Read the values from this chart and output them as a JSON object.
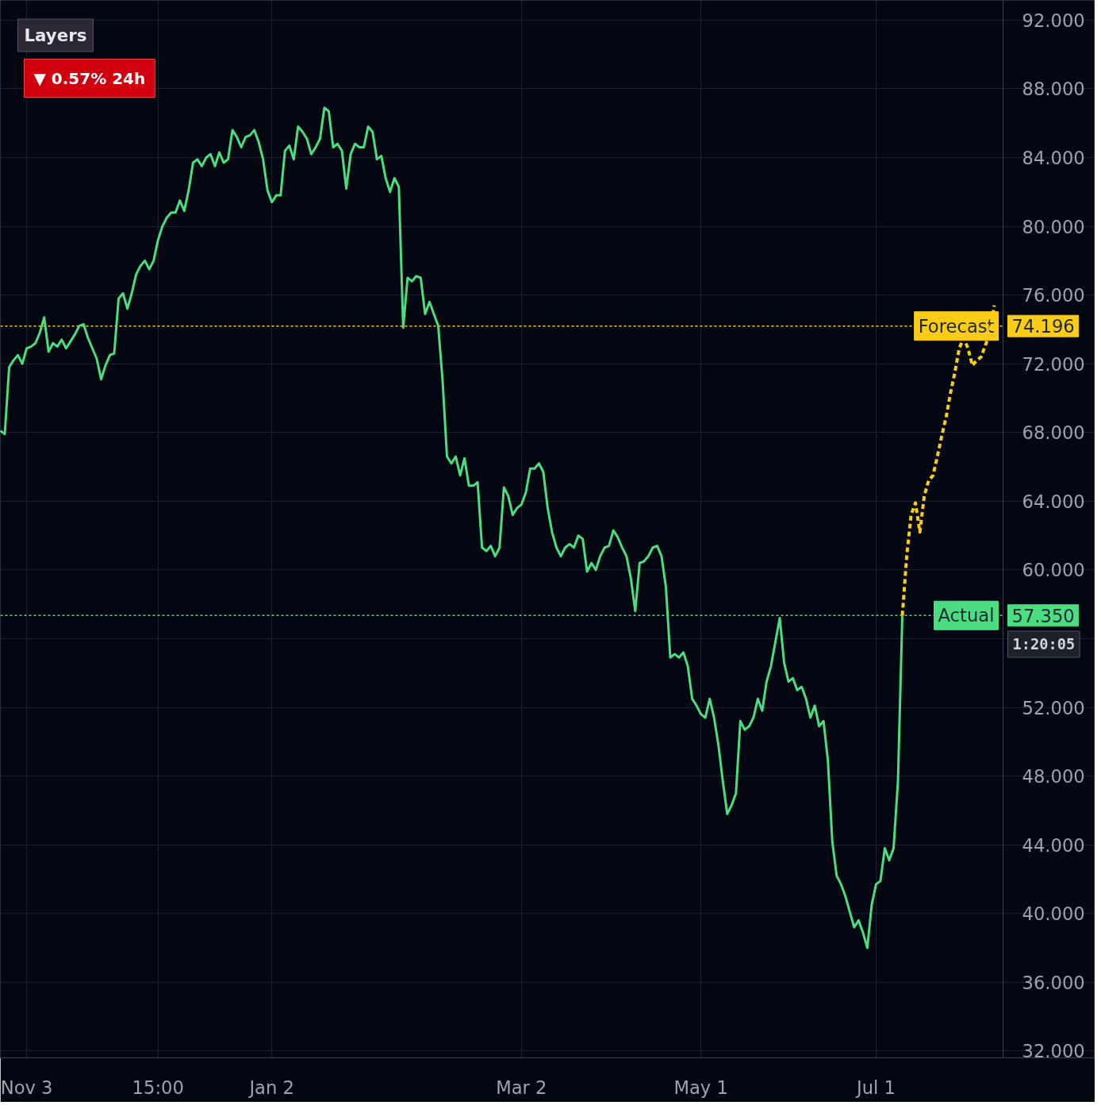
{
  "chart_data": {
    "type": "line",
    "categories": [
      null,
      null,
      null,
      null,
      null,
      null,
      "Nov 3",
      null,
      null,
      null,
      null,
      null,
      null,
      null,
      null,
      null,
      null,
      null,
      null,
      null,
      null,
      null,
      null,
      null,
      null,
      null,
      null,
      null,
      null,
      null,
      null,
      null,
      null,
      null,
      null,
      null,
      "15:00",
      null,
      null,
      null,
      null,
      null,
      null,
      null,
      null,
      null,
      null,
      null,
      null,
      null,
      null,
      null,
      null,
      null,
      null,
      null,
      null,
      null,
      null,
      null,
      null,
      null,
      "Jan 2",
      null,
      null,
      null,
      null,
      null,
      null,
      null,
      null,
      null,
      null,
      null,
      null,
      null,
      null,
      null,
      null,
      null,
      null,
      null,
      null,
      null,
      null,
      null,
      null,
      null,
      null,
      null,
      null,
      null,
      null,
      null,
      null,
      null,
      null,
      null,
      null,
      null,
      null,
      null,
      null,
      null,
      null,
      null,
      null,
      null,
      null,
      null,
      null,
      null,
      null,
      null,
      null,
      null,
      null,
      null,
      null,
      "Mar 2",
      null,
      null,
      null,
      null,
      null,
      null,
      null,
      null,
      null,
      null,
      null,
      null,
      null,
      null,
      null,
      null,
      null,
      null,
      null,
      null,
      null,
      null,
      null,
      null,
      null,
      null,
      null,
      null,
      null,
      null,
      null,
      null,
      null,
      null,
      null,
      null,
      null,
      null,
      null,
      null,
      "May 1",
      null,
      null,
      null,
      null,
      null,
      null,
      null,
      null,
      null,
      null,
      null,
      null,
      null,
      null,
      null,
      null,
      null,
      null,
      null,
      null,
      null,
      null,
      null,
      null,
      null,
      null,
      null,
      null,
      null,
      null,
      null,
      null,
      null,
      null,
      null,
      null,
      null,
      null,
      null,
      "Jul 1",
      null,
      null,
      null,
      null,
      null,
      null,
      null,
      null,
      null,
      null,
      null,
      null,
      null,
      null,
      null,
      null,
      null,
      null,
      null,
      null,
      null,
      null,
      null,
      null,
      null,
      null,
      null
    ],
    "series": [
      {
        "color": "#4ade80",
        "line_style": "solid",
        "values": [
          68.1,
          67.9,
          71.8,
          72.2,
          72.5,
          72.0,
          72.9,
          73.0,
          73.2,
          73.8,
          74.7,
          72.7,
          73.2,
          73.0,
          73.4,
          72.9,
          73.3,
          73.7,
          74.2,
          74.3,
          73.5,
          72.9,
          72.3,
          71.1,
          71.9,
          72.5,
          72.6,
          75.8,
          76.1,
          75.2,
          76.1,
          77.2,
          77.7,
          78.0,
          77.5,
          78.0,
          79.2,
          80.0,
          80.5,
          80.8,
          80.8,
          81.5,
          80.9,
          82.1,
          83.7,
          83.9,
          83.5,
          84.0,
          84.2,
          83.5,
          84.3,
          83.7,
          83.9,
          85.6,
          85.2,
          84.6,
          85.2,
          85.3,
          85.6,
          84.9,
          83.9,
          82.1,
          81.4,
          81.8,
          81.8,
          84.4,
          84.7,
          83.9,
          85.8,
          85.5,
          85.1,
          84.2,
          84.6,
          85.1,
          86.9,
          86.7,
          84.6,
          84.8,
          84.4,
          82.2,
          84.2,
          84.8,
          84.6,
          84.6,
          85.8,
          85.5,
          83.9,
          84.1,
          82.8,
          82.0,
          82.8,
          82.3,
          74.1,
          77.0,
          76.8,
          77.1,
          77.0,
          74.9,
          75.6,
          74.9,
          74.2,
          71.0,
          66.6,
          66.2,
          66.6,
          65.5,
          66.5,
          64.9,
          64.9,
          65.1,
          61.3,
          61.1,
          61.4,
          60.8,
          61.3,
          64.8,
          64.3,
          63.2,
          63.6,
          63.8,
          64.5,
          65.9,
          65.9,
          66.2,
          65.7,
          63.6,
          62.2,
          61.3,
          60.8,
          61.3,
          61.5,
          61.3,
          62.0,
          61.8,
          59.9,
          60.4,
          60.0,
          60.8,
          61.3,
          61.4,
          62.3,
          61.9,
          61.3,
          60.8,
          59.5,
          57.6,
          60.4,
          60.5,
          60.8,
          61.3,
          61.4,
          60.8,
          59.0,
          54.9,
          55.1,
          54.9,
          55.2,
          54.4,
          52.5,
          52.1,
          51.6,
          51.4,
          52.5,
          51.4,
          49.8,
          47.7,
          45.8,
          46.3,
          47.0,
          51.2,
          50.7,
          50.9,
          51.4,
          52.5,
          51.8,
          53.5,
          54.4,
          55.8,
          57.2,
          54.6,
          53.5,
          53.7,
          53.0,
          53.2,
          52.5,
          51.4,
          52.1,
          50.9,
          51.2,
          48.9,
          44.2,
          42.2,
          41.7,
          41.0,
          40.1,
          39.2,
          39.6,
          38.9,
          38.0,
          40.5,
          41.7,
          41.9,
          43.8,
          43.1,
          43.8,
          47.7,
          57.35,
          null,
          null,
          null,
          null,
          null,
          null,
          null,
          null,
          null,
          null,
          null,
          null,
          null,
          null,
          null,
          null,
          null,
          null,
          null,
          null,
          null
        ]
      },
      {
        "color": "#facc15",
        "line_style": "dashed",
        "values": [
          null,
          null,
          null,
          null,
          null,
          null,
          null,
          null,
          null,
          null,
          null,
          null,
          null,
          null,
          null,
          null,
          null,
          null,
          null,
          null,
          null,
          null,
          null,
          null,
          null,
          null,
          null,
          null,
          null,
          null,
          null,
          null,
          null,
          null,
          null,
          null,
          null,
          null,
          null,
          null,
          null,
          null,
          null,
          null,
          null,
          null,
          null,
          null,
          null,
          null,
          null,
          null,
          null,
          null,
          null,
          null,
          null,
          null,
          null,
          null,
          null,
          null,
          null,
          null,
          null,
          null,
          null,
          null,
          null,
          null,
          null,
          null,
          null,
          null,
          null,
          null,
          null,
          null,
          null,
          null,
          null,
          null,
          null,
          null,
          null,
          null,
          null,
          null,
          null,
          null,
          null,
          null,
          null,
          null,
          null,
          null,
          null,
          null,
          null,
          null,
          null,
          null,
          null,
          null,
          null,
          null,
          null,
          null,
          null,
          null,
          null,
          null,
          null,
          null,
          null,
          null,
          null,
          null,
          null,
          null,
          null,
          null,
          null,
          null,
          null,
          null,
          null,
          null,
          null,
          null,
          null,
          null,
          null,
          null,
          null,
          null,
          null,
          null,
          null,
          null,
          null,
          null,
          null,
          null,
          null,
          null,
          null,
          null,
          null,
          null,
          null,
          null,
          null,
          null,
          null,
          null,
          null,
          null,
          null,
          null,
          null,
          null,
          null,
          null,
          null,
          null,
          null,
          null,
          null,
          null,
          null,
          null,
          null,
          null,
          null,
          null,
          null,
          null,
          null,
          null,
          null,
          null,
          null,
          null,
          null,
          null,
          null,
          null,
          null,
          null,
          null,
          null,
          null,
          null,
          null,
          null,
          null,
          null,
          null,
          null,
          null,
          null,
          null,
          null,
          null,
          null,
          57.35,
          60.8,
          63.2,
          63.9,
          62.2,
          64.3,
          65.2,
          65.5,
          66.6,
          67.8,
          68.9,
          70.3,
          71.5,
          72.9,
          73.5,
          72.9,
          71.9,
          72.2,
          72.4,
          73.1,
          73.8,
          75.4
        ]
      }
    ],
    "ylim": [
      31.6,
      93.15
    ],
    "yticks": [
      {
        "value": 32,
        "label": "32.000"
      },
      {
        "value": 36,
        "label": "36.000"
      },
      {
        "value": 40,
        "label": "40.000"
      },
      {
        "value": 44,
        "label": "44.000"
      },
      {
        "value": 48,
        "label": "48.000"
      },
      {
        "value": 52,
        "label": "52.000"
      },
      {
        "value": 56,
        "label": null
      },
      {
        "value": 60,
        "label": "60.000"
      },
      {
        "value": 64,
        "label": "64.000"
      },
      {
        "value": 68,
        "label": "68.000"
      },
      {
        "value": 72,
        "label": "72.000"
      },
      {
        "value": 76,
        "label": "76.000"
      },
      {
        "value": 80,
        "label": "80.000"
      },
      {
        "value": 84,
        "label": "84.000"
      },
      {
        "value": 88,
        "label": "88.000"
      },
      {
        "value": 92,
        "label": "92.000"
      }
    ],
    "grid": true,
    "ref_lines": [
      {
        "axis": "y",
        "value": 74.196,
        "label": "Forecast",
        "color": "#facc15",
        "line_style": "dotted"
      },
      {
        "axis": "y",
        "value": 57.35,
        "label": "Actual",
        "color": "#4ade80",
        "line_style": "dotted"
      }
    ],
    "annotations": [
      "Layers",
      "▼ 0.57% 24h",
      "1:20:05",
      "74.196",
      "57.350"
    ]
  }
}
